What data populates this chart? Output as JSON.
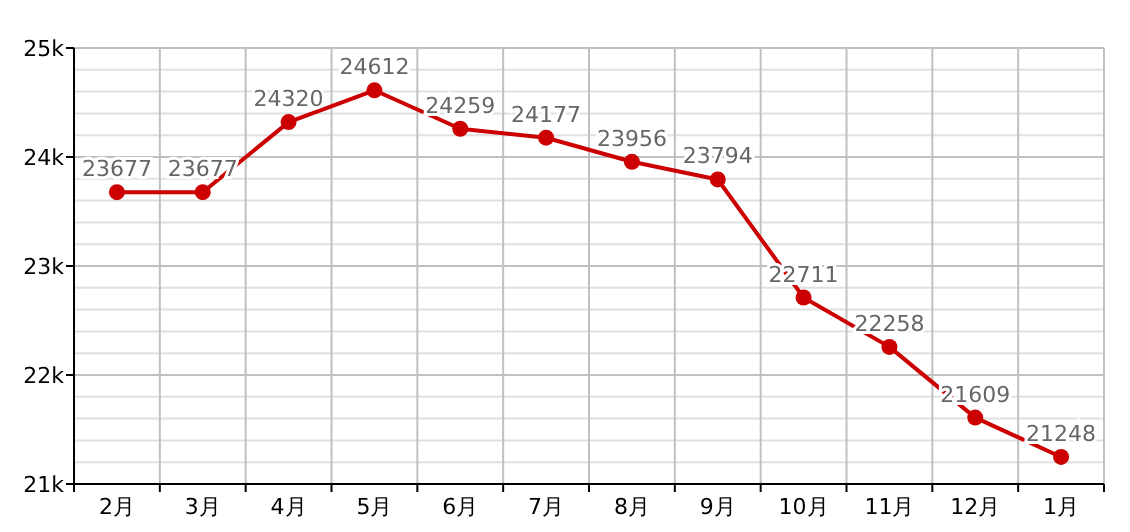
{
  "chart_data": {
    "type": "line",
    "categories": [
      "2月",
      "3月",
      "4月",
      "5月",
      "6月",
      "7月",
      "8月",
      "9月",
      "10月",
      "11月",
      "12月",
      "1月"
    ],
    "series": [
      {
        "color": "#cc0000",
        "values": [
          23677,
          23677,
          24320,
          24612,
          24259,
          24177,
          23956,
          23794,
          22711,
          22258,
          21609,
          21248
        ]
      }
    ],
    "ylim": [
      21000,
      25000
    ],
    "yticks": [
      {
        "value": 21000,
        "label": "21k"
      },
      {
        "value": 22000,
        "label": "22k"
      },
      {
        "value": 23000,
        "label": "23k"
      },
      {
        "value": 24000,
        "label": "24k"
      },
      {
        "value": 25000,
        "label": "25k"
      }
    ],
    "grid": true,
    "marker": "circle",
    "line_style": "solid",
    "data_labels": true
  }
}
